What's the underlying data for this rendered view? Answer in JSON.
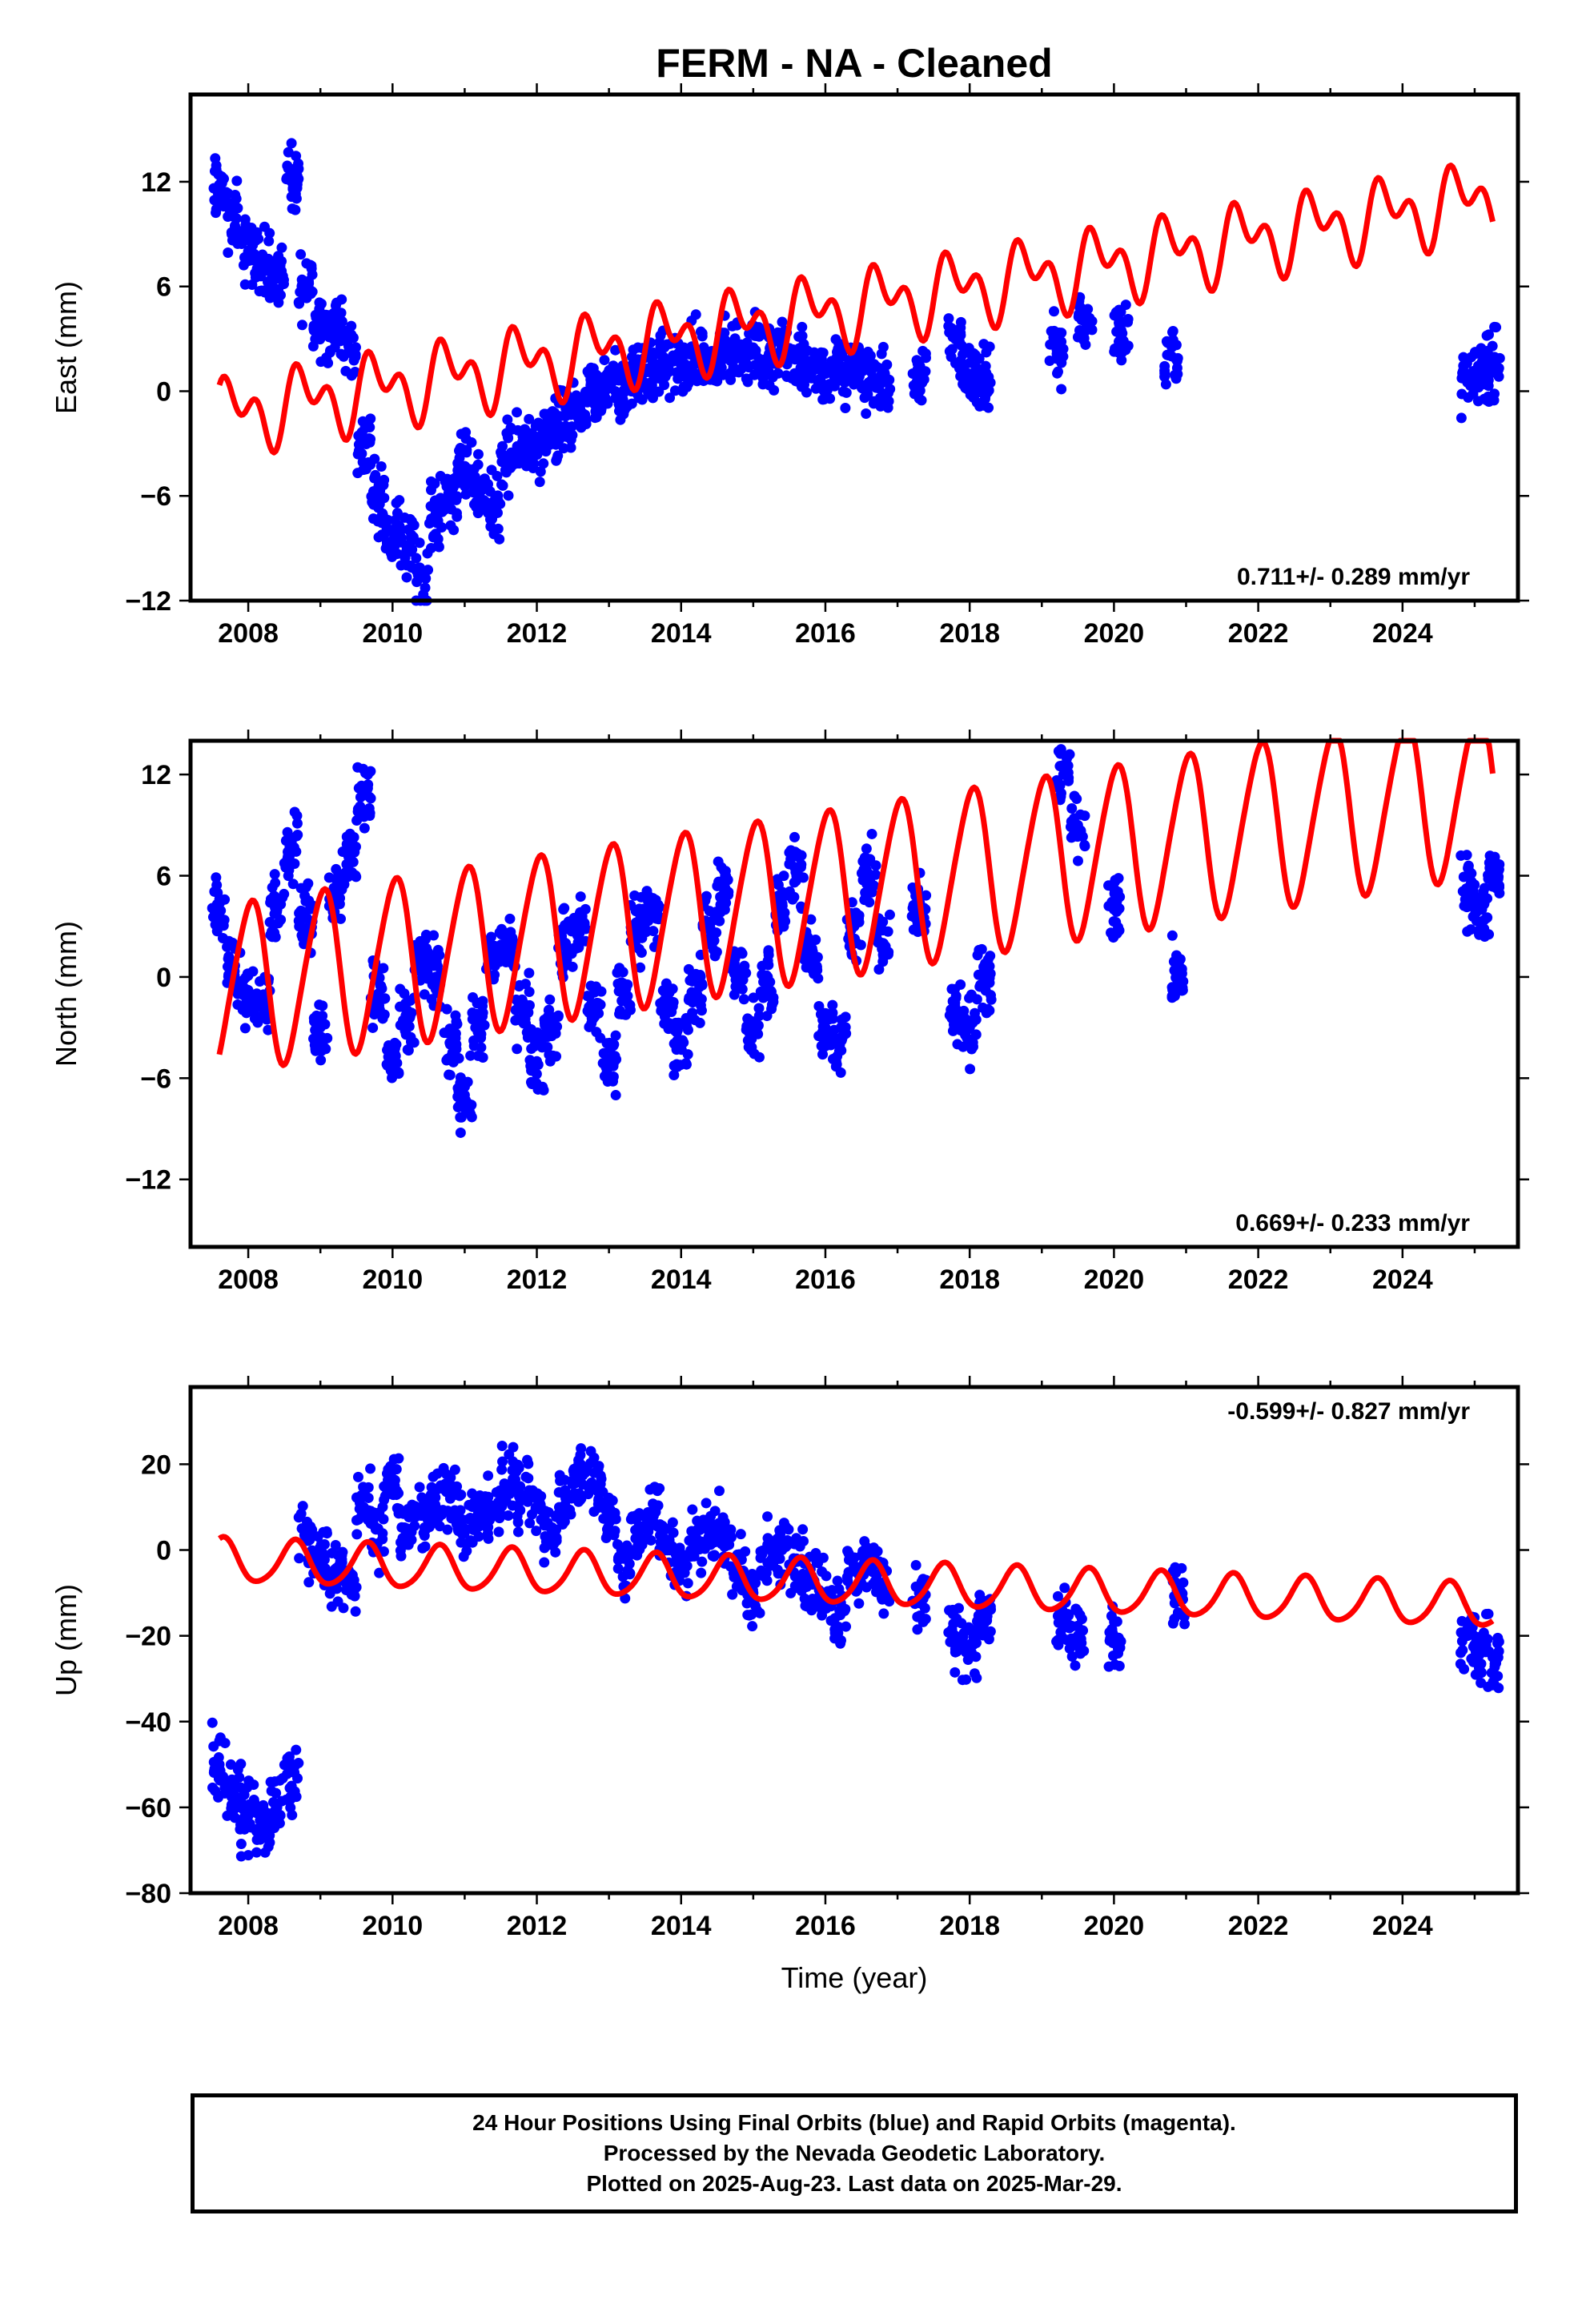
{
  "figure": {
    "title": "FERM  - NA - Cleaned"
  },
  "chart_data": [
    {
      "type": "scatter",
      "panel": "east",
      "ylabel": "East (mm)",
      "xlabel": "",
      "xlim": [
        2007.2,
        2025.6
      ],
      "ylim": [
        -12,
        17
      ],
      "xticks": [
        2008,
        2010,
        2012,
        2014,
        2016,
        2018,
        2020,
        2022,
        2024
      ],
      "yticks": [
        -12,
        -6,
        0,
        6,
        12
      ],
      "ytick_labels": [
        "−12",
        "−6",
        "0",
        "6",
        "12"
      ],
      "rate_label": "0.711+/- 0.289 mm/yr",
      "rate_position": "bottom-right",
      "colors": {
        "observed": "#0000ff",
        "model": "#ff0000"
      },
      "series": [
        {
          "kind": "points",
          "x": [
            2007.6,
            2007.8,
            2008.0,
            2008.2,
            2008.4,
            2008.6,
            2008.8,
            2009.0,
            2009.2,
            2009.4,
            2009.6,
            2009.8,
            2010.0,
            2010.2,
            2010.4,
            2010.6,
            2010.8,
            2011.0,
            2011.2,
            2011.4,
            2011.6,
            2011.8,
            2012.0,
            2012.2,
            2012.4,
            2012.6,
            2012.8,
            2013.0,
            2013.2,
            2013.4,
            2013.6,
            2013.8,
            2014.0,
            2014.2,
            2014.4,
            2014.6,
            2014.8,
            2015.0,
            2015.2,
            2015.4,
            2015.6,
            2015.8,
            2016.0,
            2016.2,
            2016.4,
            2016.6,
            2016.8,
            2017.3,
            2017.8,
            2018.0,
            2018.2,
            2019.2,
            2019.6,
            2020.1,
            2020.8,
            2024.9,
            2025.1,
            2025.25
          ],
          "y": [
            11.5,
            10.0,
            8.0,
            7.5,
            6.5,
            12.0,
            6.0,
            4.0,
            3.5,
            2.5,
            -3.0,
            -6.0,
            -8.0,
            -9.0,
            -10.5,
            -7.0,
            -6.0,
            -4.5,
            -5.5,
            -6.5,
            -4.0,
            -3.0,
            -3.5,
            -2.5,
            -2.0,
            -1.0,
            -0.5,
            0.5,
            0.0,
            1.0,
            1.0,
            1.5,
            1.5,
            2.0,
            1.5,
            2.0,
            2.5,
            2.5,
            1.5,
            2.5,
            2.0,
            1.5,
            1.0,
            1.0,
            1.5,
            0.5,
            0.5,
            1.0,
            3.0,
            1.0,
            0.5,
            2.5,
            4.0,
            3.5,
            2.0,
            0.5,
            1.0,
            1.5
          ]
        },
        {
          "kind": "model",
          "model": {
            "t0": 2007.6,
            "t1": 2025.25,
            "offset": -1.45,
            "rate": 0.711,
            "annual_amp": 1.5,
            "annual_phase": 0.4,
            "semi_amp": 1.3,
            "semi_phase": 1.2
          }
        }
      ]
    },
    {
      "type": "scatter",
      "panel": "north",
      "ylabel": "North (mm)",
      "xlabel": "",
      "xlim": [
        2007.2,
        2025.6
      ],
      "ylim": [
        -16,
        14
      ],
      "xticks": [
        2008,
        2010,
        2012,
        2014,
        2016,
        2018,
        2020,
        2022,
        2024
      ],
      "yticks": [
        -12,
        -6,
        0,
        6,
        12
      ],
      "ytick_labels": [
        "−12",
        "−6",
        "0",
        "6",
        "12"
      ],
      "rate_label": "0.669+/- 0.233 mm/yr",
      "rate_position": "bottom-right",
      "colors": {
        "observed": "#0000ff",
        "model": "#ff0000"
      },
      "series": [
        {
          "kind": "points",
          "x": [
            2007.6,
            2007.8,
            2008.0,
            2008.2,
            2008.4,
            2008.6,
            2008.8,
            2009.0,
            2009.2,
            2009.4,
            2009.6,
            2009.8,
            2010.0,
            2010.2,
            2010.4,
            2010.6,
            2010.8,
            2011.0,
            2011.2,
            2011.4,
            2011.6,
            2011.8,
            2012.0,
            2012.2,
            2012.4,
            2012.6,
            2012.8,
            2013.0,
            2013.2,
            2013.4,
            2013.6,
            2013.8,
            2014.0,
            2014.2,
            2014.4,
            2014.6,
            2014.8,
            2015.0,
            2015.2,
            2015.4,
            2015.6,
            2015.8,
            2016.0,
            2016.2,
            2016.4,
            2016.6,
            2016.8,
            2017.3,
            2017.8,
            2018.0,
            2018.2,
            2019.3,
            2019.5,
            2020.0,
            2020.9,
            2024.9,
            2025.1,
            2025.25
          ],
          "y": [
            4.0,
            0.0,
            -1.0,
            -1.5,
            4.0,
            8.0,
            3.5,
            -3.0,
            5.0,
            7.0,
            11.0,
            -1.0,
            -5.0,
            -3.0,
            1.0,
            0.0,
            -4.0,
            -7.0,
            -3.0,
            1.0,
            2.0,
            -2.0,
            -5.0,
            -3.0,
            2.0,
            3.0,
            -2.0,
            -5.0,
            -1.0,
            3.0,
            4.0,
            -2.0,
            -4.0,
            -1.0,
            3.0,
            5.0,
            0.0,
            -3.0,
            0.0,
            4.0,
            6.0,
            1.0,
            -3.0,
            -4.0,
            3.0,
            6.0,
            2.0,
            4.0,
            -2.0,
            -3.0,
            0.0,
            12.0,
            9.0,
            4.0,
            0.0,
            5.0,
            4.0,
            6.0
          ]
        },
        {
          "kind": "model",
          "model": {
            "t0": 2007.6,
            "t1": 2025.25,
            "offset": -0.7,
            "rate": 0.669,
            "annual_amp": 4.9,
            "annual_phase": 5.2,
            "semi_amp": 0.6,
            "semi_phase": 0.8
          }
        }
      ]
    },
    {
      "type": "scatter",
      "panel": "up",
      "ylabel": "Up (mm)",
      "xlabel": "Time (year)",
      "xlim": [
        2007.2,
        2025.6
      ],
      "ylim": [
        -80,
        38
      ],
      "xticks": [
        2008,
        2010,
        2012,
        2014,
        2016,
        2018,
        2020,
        2022,
        2024
      ],
      "yticks": [
        -80,
        -60,
        -40,
        -20,
        0,
        20
      ],
      "ytick_labels": [
        "−80",
        "−60",
        "−40",
        "−20",
        "0",
        "20"
      ],
      "rate_label": "-0.599+/- 0.827 mm/yr",
      "rate_position": "top-right",
      "colors": {
        "observed": "#0000ff",
        "model": "#ff0000"
      },
      "series": [
        {
          "kind": "points",
          "x": [
            2007.6,
            2007.8,
            2008.0,
            2008.2,
            2008.4,
            2008.6,
            2008.8,
            2009.0,
            2009.2,
            2009.4,
            2009.6,
            2009.8,
            2010.0,
            2010.2,
            2010.4,
            2010.6,
            2010.8,
            2011.0,
            2011.2,
            2011.4,
            2011.6,
            2011.8,
            2012.0,
            2012.2,
            2012.4,
            2012.6,
            2012.8,
            2013.0,
            2013.2,
            2013.4,
            2013.6,
            2013.8,
            2014.0,
            2014.2,
            2014.4,
            2014.6,
            2014.8,
            2015.0,
            2015.2,
            2015.4,
            2015.6,
            2015.8,
            2016.0,
            2016.2,
            2016.4,
            2016.6,
            2016.8,
            2017.3,
            2017.8,
            2018.0,
            2018.2,
            2019.3,
            2019.5,
            2020.0,
            2020.9,
            2024.9,
            2025.1,
            2025.25
          ],
          "y": [
            -50.0,
            -57.0,
            -62.0,
            -65.0,
            -60.0,
            -55.0,
            3.0,
            -2.0,
            -5.0,
            -8.0,
            10.0,
            5.0,
            15.0,
            5.0,
            8.0,
            10.0,
            12.0,
            5.0,
            8.0,
            10.0,
            15.0,
            12.0,
            10.0,
            5.0,
            12.0,
            18.0,
            15.0,
            8.0,
            -2.0,
            5.0,
            8.0,
            2.0,
            -5.0,
            2.0,
            5.0,
            3.0,
            -5.0,
            -10.0,
            -3.0,
            0.0,
            -2.0,
            -8.0,
            -10.0,
            -15.0,
            -5.0,
            -2.0,
            -8.0,
            -10.0,
            -20.0,
            -22.0,
            -15.0,
            -18.0,
            -20.0,
            -20.0,
            -12.0,
            -20.0,
            -22.0,
            -25.0
          ]
        },
        {
          "kind": "model",
          "model": {
            "t0": 2007.6,
            "t1": 2025.25,
            "offset": -2.5,
            "rate": -0.599,
            "annual_amp": 5.0,
            "annual_phase": 1.3,
            "semi_amp": 0.7,
            "semi_phase": 0.5
          }
        }
      ]
    }
  ],
  "footer": {
    "lines": [
      "24 Hour Positions Using Final Orbits (blue) and Rapid Orbits (magenta).",
      "Processed by the Nevada Geodetic Laboratory.",
      "Plotted on 2025-Aug-23. Last data on 2025-Mar-29."
    ]
  }
}
